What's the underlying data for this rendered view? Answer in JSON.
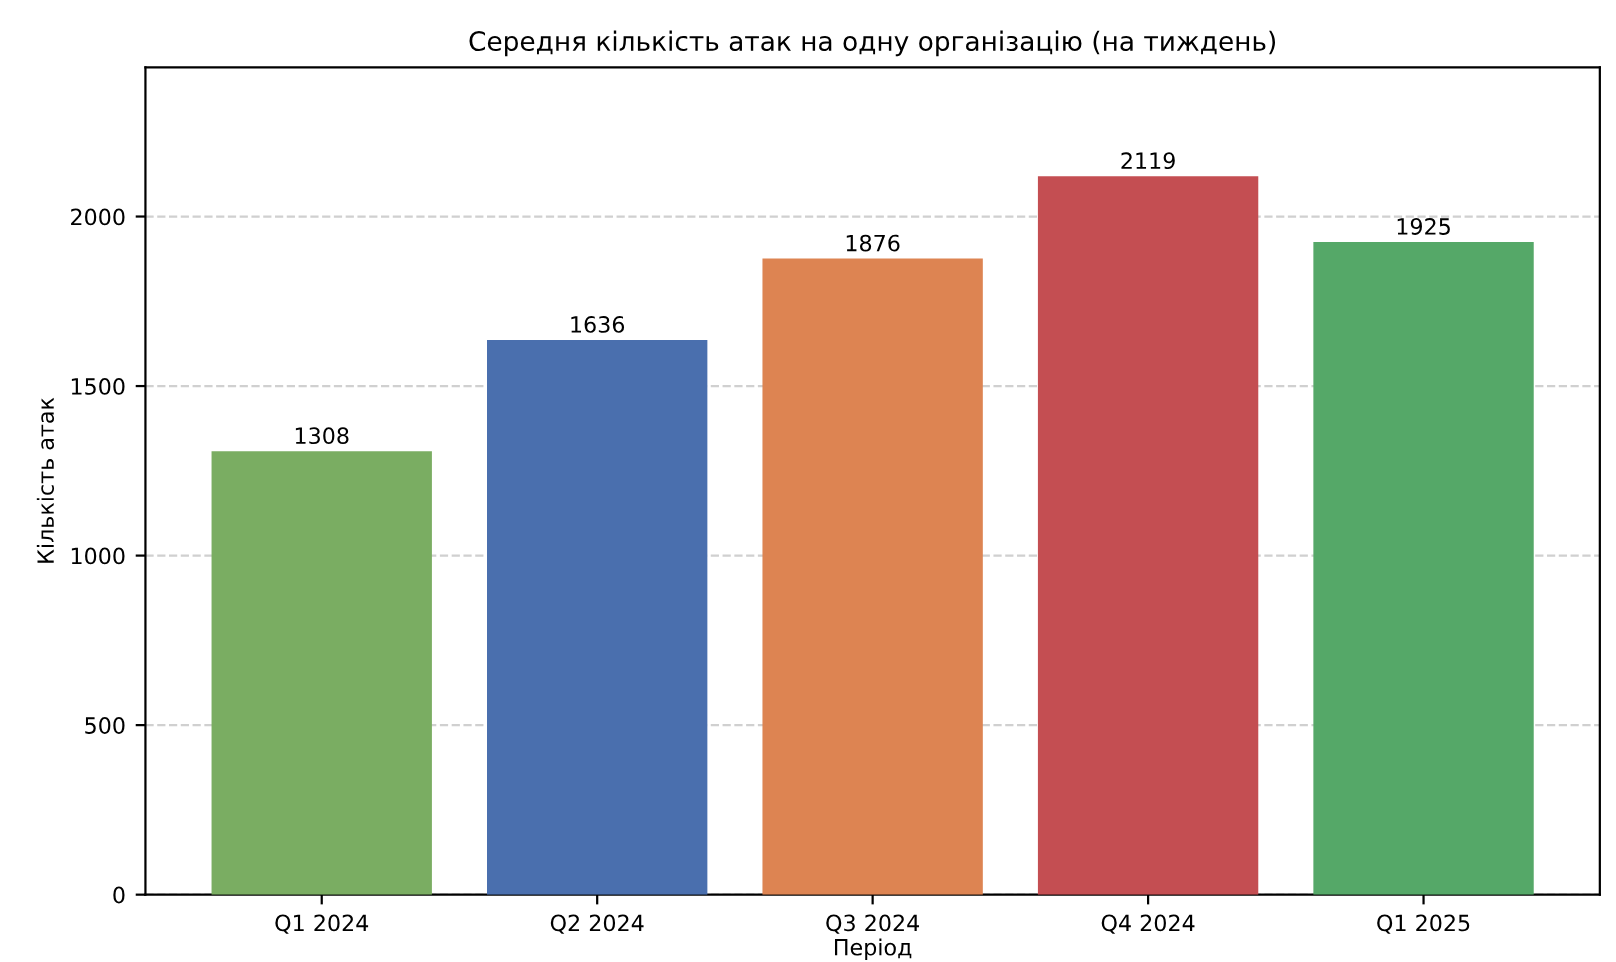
{
  "chart_data": {
    "type": "bar",
    "title": "Середня кількість атак на одну організацію (на тиждень)",
    "xlabel": "Період",
    "ylabel": "Кількість атак",
    "categories": [
      "Q1 2024",
      "Q2 2024",
      "Q3 2024",
      "Q4 2024",
      "Q1 2025"
    ],
    "values": [
      1308,
      1636,
      1876,
      2119,
      1925
    ],
    "colors": [
      "#7aad62",
      "#4a6fae",
      "#dd8452",
      "#c44e52",
      "#55a868"
    ],
    "ylim": [
      0,
      2440
    ],
    "yticks": [
      0,
      500,
      1000,
      1500,
      2000
    ],
    "grid": "y",
    "data_labels": true
  }
}
